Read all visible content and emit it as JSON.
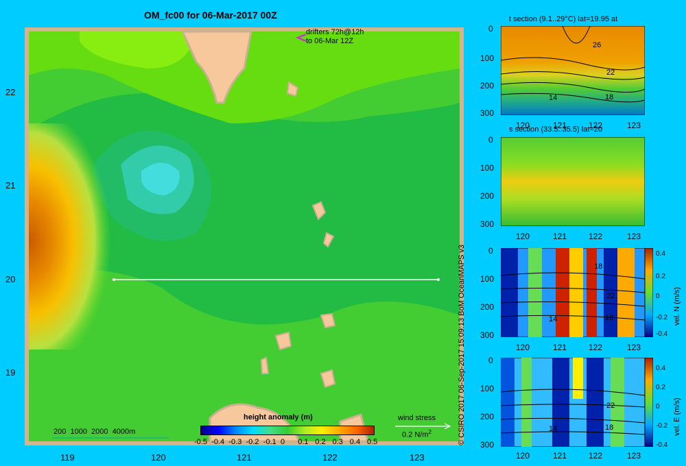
{
  "title": "OM_fc00 for 06-Mar-2017 00Z",
  "main_map": {
    "lat_ticks": [
      "22",
      "21",
      "20",
      "19"
    ],
    "lon_ticks": [
      "119",
      "120",
      "121",
      "122",
      "123"
    ],
    "drifters_line1": "drifters 72h@12h",
    "drifters_line2": "to 06-Mar 12Z",
    "bathymetry_scale": "200  1000  2000  4000m",
    "wind_label": "wind stress",
    "wind_value": "0.2 N/m",
    "wind_exp": "2",
    "colorbar_title": "height anomaly (m)",
    "colorbar_ticks": [
      "-0.5",
      "-0.4",
      "-0.3",
      "-0.2",
      "-0.1",
      "0",
      "0.1",
      "0.2",
      "0.3",
      "0.4",
      "0.5"
    ],
    "colors": {
      "land": "#f7c89b",
      "land_edge": "#c8b090",
      "frame": "#d4b48c"
    }
  },
  "panels": [
    {
      "title": "t section (9.1..29°C) lat=19.95 at",
      "depth_ticks": [
        "0",
        "100",
        "200",
        "300"
      ],
      "lon_ticks": [
        "120",
        "121",
        "122",
        "123"
      ],
      "contour_labels": [
        "26",
        "22",
        "18",
        "14"
      ]
    },
    {
      "title": "s section (33.5..35.5) lat=20",
      "depth_ticks": [
        "0",
        "100",
        "200",
        "300"
      ],
      "lon_ticks": [
        "120",
        "121",
        "122",
        "123"
      ],
      "contour_labels": []
    },
    {
      "title": "",
      "depth_ticks": [
        "0",
        "100",
        "200",
        "300"
      ],
      "lon_ticks": [
        "120",
        "121",
        "122",
        "123"
      ],
      "contour_labels": [
        "18",
        "22",
        "14",
        "18"
      ],
      "cb_label": "vel. N  (m/s)",
      "cb_ticks": [
        "0.4",
        "0.2",
        "0",
        "-0.2",
        "-0.4"
      ]
    },
    {
      "title": "",
      "depth_ticks": [
        "0",
        "100",
        "200",
        "300"
      ],
      "lon_ticks": [
        "120",
        "121",
        "122",
        "123"
      ],
      "contour_labels": [
        "22",
        "14",
        "18"
      ],
      "cb_label": "vel. E  (m/s)",
      "cb_ticks": [
        "0.4",
        "0.2",
        "0",
        "-0.2",
        "-0.4"
      ]
    }
  ],
  "credit": "© CSIRO 2017   06-Sep-2017 15:09:13 BoM OceanMAPS v3"
}
